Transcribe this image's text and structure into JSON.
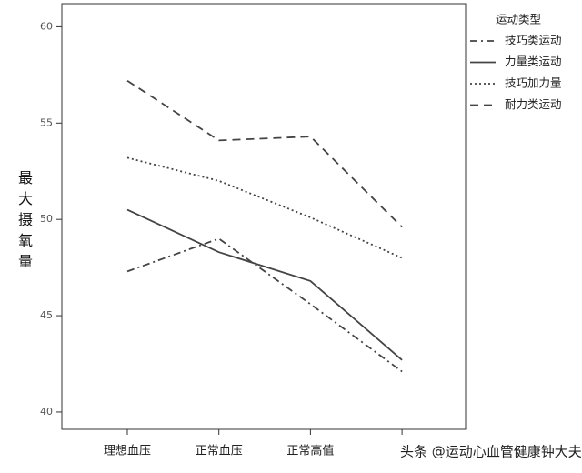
{
  "chart_data": {
    "type": "line",
    "y_label": "最大摄氧量",
    "legend_title": "运动类型",
    "legend_position": "right",
    "categories": [
      "理想血压",
      "正常血压",
      "正常高值",
      null
    ],
    "series": [
      {
        "name": "技巧类运动",
        "color": "#444444",
        "line_style": "dashdot",
        "values": [
          47.3,
          49.0,
          45.6,
          42.1
        ]
      },
      {
        "name": "力量类运动",
        "color": "#444444",
        "line_style": "solid",
        "values": [
          50.5,
          48.3,
          46.8,
          42.7
        ]
      },
      {
        "name": "技巧加力量",
        "color": "#444444",
        "line_style": "dotted",
        "values": [
          53.2,
          52.0,
          50.1,
          48.0
        ]
      },
      {
        "name": "耐力类运动",
        "color": "#444444",
        "line_style": "dashed",
        "values": [
          57.2,
          54.1,
          54.3,
          49.6
        ]
      }
    ],
    "ylim": [
      39.1,
      61.2
    ],
    "yticks": [
      40,
      45,
      50,
      55,
      60
    ],
    "grid": false,
    "watermark": "头条 @运动心血管健康钟大夫"
  }
}
